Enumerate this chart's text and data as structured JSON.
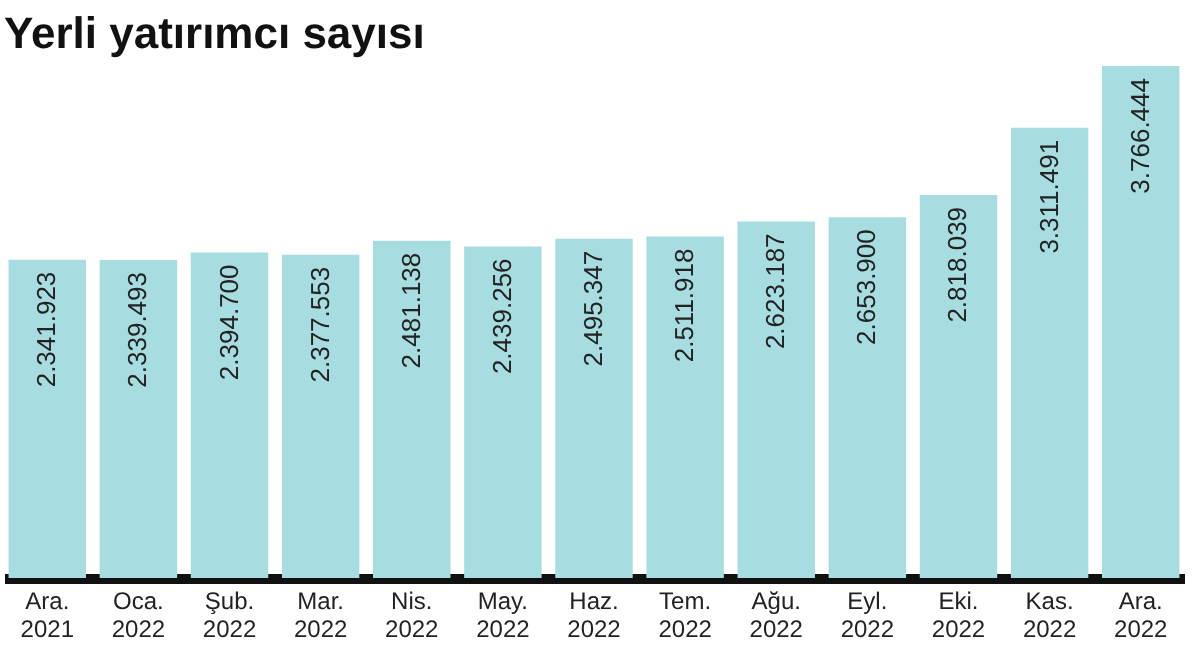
{
  "chart_data": {
    "type": "bar",
    "title": "Yerli yatırımcı sayısı",
    "categories": [
      "Ara.\n2021",
      "Oca.\n2022",
      "Şub.\n2022",
      "Mar.\n2022",
      "Nis.\n2022",
      "May.\n2022",
      "Haz.\n2022",
      "Tem.\n2022",
      "Ağu.\n2022",
      "Eyl.\n2022",
      "Eki.\n2022",
      "Kas.\n2022",
      "Ara.\n2022"
    ],
    "values": [
      2341923,
      2339493,
      2394700,
      2377553,
      2481138,
      2439256,
      2495347,
      2511918,
      2623187,
      2653900,
      2818039,
      3311491,
      3766444
    ],
    "value_labels": [
      "2.341.923",
      "2.339.493",
      "2.394.700",
      "2.377.553",
      "2.481.138",
      "2.439.256",
      "2.495.347",
      "2.511.918",
      "2.623.187",
      "2.653.900",
      "2.818.039",
      "3.311.491",
      "3.766.444"
    ],
    "color": "#a7dde1"
  }
}
